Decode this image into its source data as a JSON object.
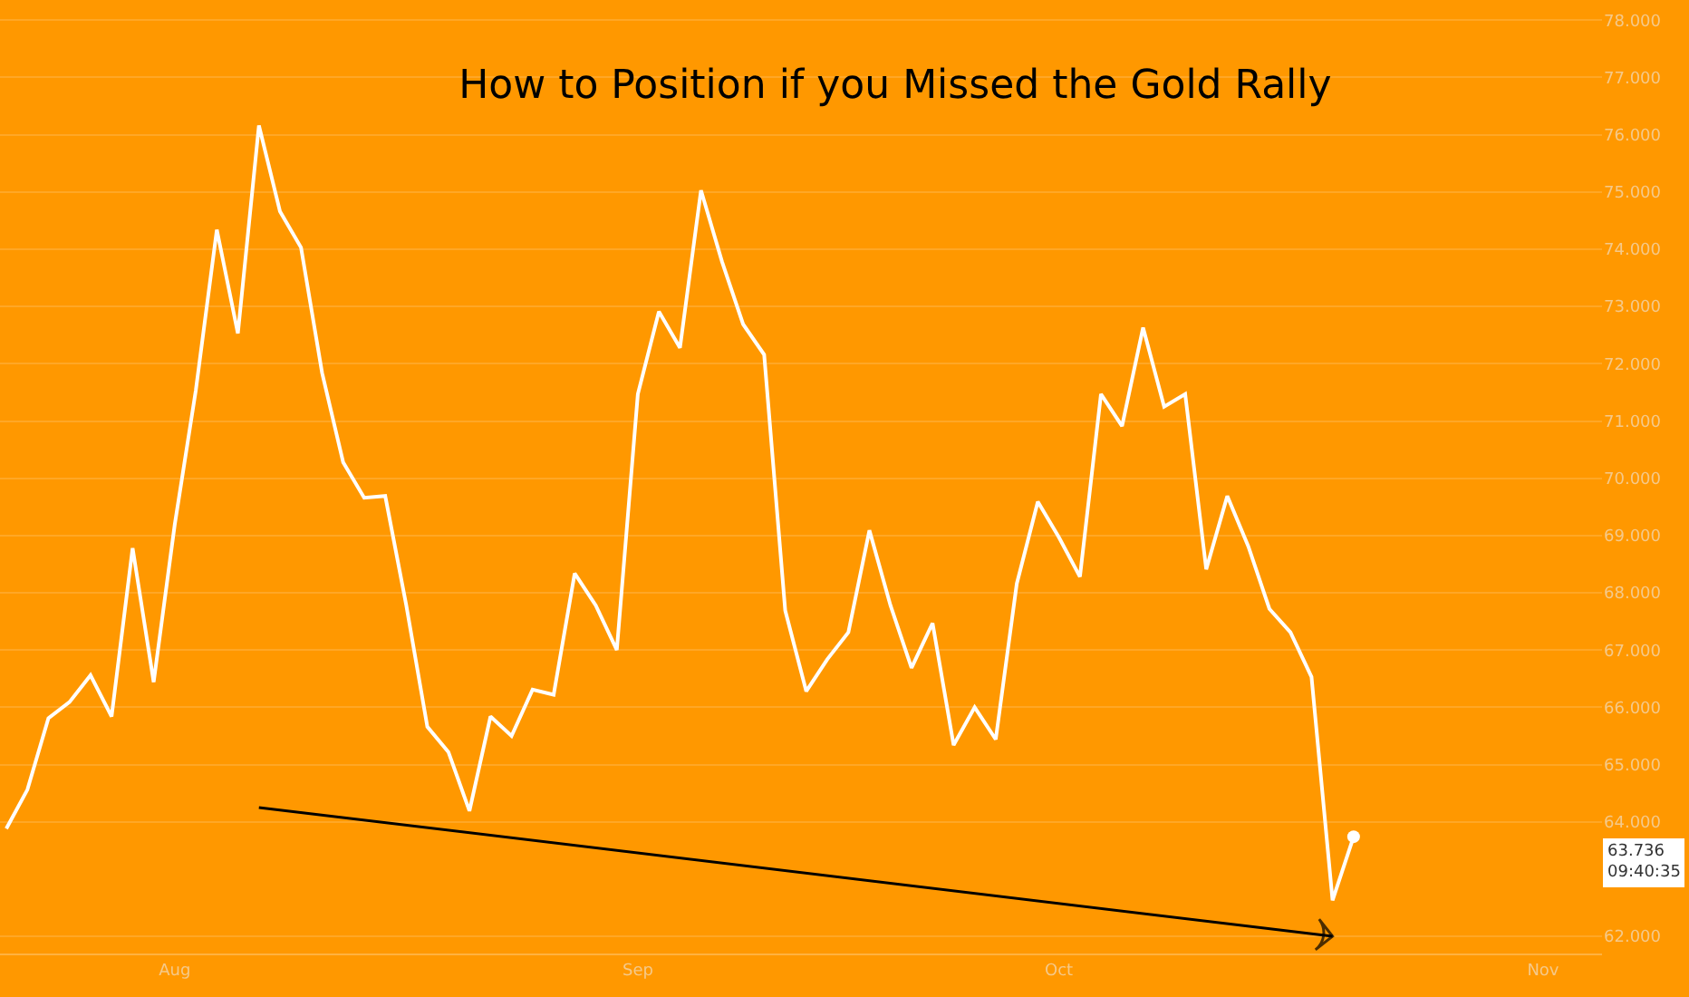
{
  "chart_data": {
    "type": "line",
    "title": "How to Position if you Missed the Gold Rally",
    "categories": [
      null,
      null,
      null,
      null,
      null,
      null,
      null,
      null,
      "Aug",
      null,
      null,
      null,
      null,
      null,
      null,
      null,
      null,
      null,
      null,
      null,
      null,
      null,
      null,
      null,
      null,
      null,
      null,
      null,
      null,
      null,
      "Sep",
      null,
      null,
      null,
      null,
      null,
      null,
      null,
      null,
      null,
      null,
      null,
      null,
      null,
      null,
      null,
      null,
      null,
      null,
      null,
      "Oct",
      null,
      null,
      null,
      null,
      null,
      null,
      null,
      null,
      null,
      null,
      null,
      null,
      null,
      null,
      null,
      null,
      null,
      null,
      null,
      null,
      null,
      null,
      "Nov",
      null,
      null
    ],
    "series": [
      {
        "color": "#ffffff",
        "values": [
          63.88,
          64.56,
          65.81,
          66.09,
          66.56,
          65.84,
          68.78,
          66.44,
          69.19,
          71.53,
          74.34,
          72.53,
          76.16,
          74.66,
          74.03,
          71.84,
          70.28,
          69.66,
          69.69,
          67.78,
          65.66,
          65.22,
          64.19,
          65.84,
          65.5,
          66.31,
          66.22,
          68.34,
          67.78,
          67.0,
          71.47,
          72.91,
          72.28,
          75.03,
          73.78,
          72.69,
          72.16,
          67.69,
          66.28,
          66.84,
          67.31,
          69.09,
          67.78,
          66.69,
          67.47,
          65.34,
          66.0,
          65.44,
          68.16,
          69.59,
          68.97,
          68.28,
          71.47,
          70.91,
          72.63,
          71.25,
          71.47,
          68.41,
          69.69,
          68.81,
          67.72,
          67.31,
          66.53,
          62.63,
          63.74,
          null,
          null,
          null,
          null,
          null,
          null,
          null,
          null,
          null,
          null,
          null
        ]
      },
      {
        "type": "line",
        "color": "#000000",
        "values": [
          null,
          null,
          null,
          null,
          null,
          null,
          null,
          null,
          null,
          null,
          null,
          null,
          64.25,
          null,
          null,
          null,
          null,
          null,
          null,
          null,
          null,
          null,
          null,
          null,
          null,
          null,
          null,
          null,
          null,
          null,
          null,
          null,
          null,
          null,
          null,
          null,
          null,
          null,
          null,
          null,
          null,
          null,
          null,
          null,
          null,
          null,
          null,
          null,
          null,
          null,
          null,
          null,
          null,
          null,
          null,
          null,
          null,
          null,
          null,
          null,
          null,
          null,
          null,
          62.0,
          null,
          null,
          null,
          null,
          null,
          null,
          null,
          null,
          null,
          null,
          null,
          null
        ]
      }
    ],
    "ylim": [
      61.7,
      78.1
    ],
    "yticks": [
      {
        "value": 62,
        "label": "62.000"
      },
      {
        "value": 64,
        "label": "64.000"
      },
      {
        "value": 65,
        "label": "65.000"
      },
      {
        "value": 66,
        "label": "66.000"
      },
      {
        "value": 67,
        "label": "67.000"
      },
      {
        "value": 68,
        "label": "68.000"
      },
      {
        "value": 69,
        "label": "69.000"
      },
      {
        "value": 70,
        "label": "70.000"
      },
      {
        "value": 71,
        "label": "71.000"
      },
      {
        "value": 72,
        "label": "72.000"
      },
      {
        "value": 73,
        "label": "73.000"
      },
      {
        "value": 74,
        "label": "74.000"
      },
      {
        "value": 75,
        "label": "75.000"
      },
      {
        "value": 76,
        "label": "76.000"
      },
      {
        "value": 77,
        "label": "77.000"
      },
      {
        "value": 78,
        "label": "78.000"
      }
    ],
    "annotations": [
      "63.736",
      "09:40:35"
    ],
    "grid": "y",
    "legend": false
  }
}
